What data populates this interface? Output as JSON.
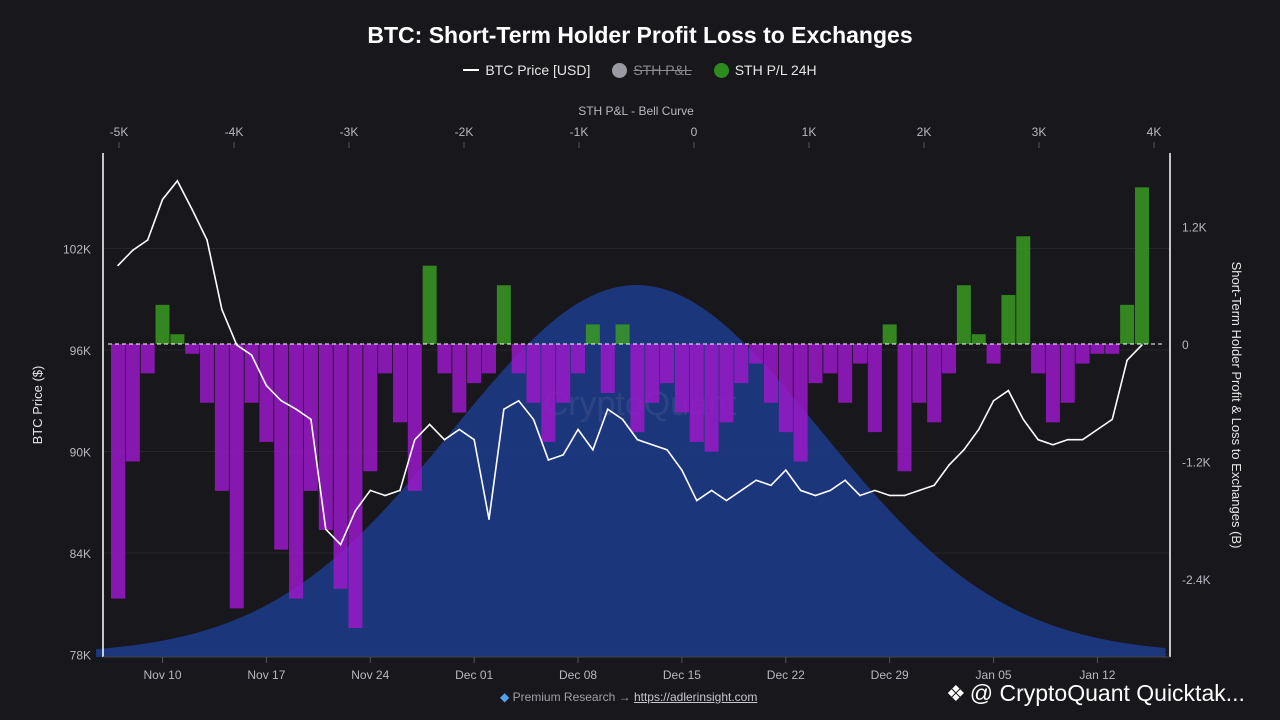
{
  "title": "BTC: Short-Term Holder Profit Loss to Exchanges",
  "legend": [
    {
      "label": "BTC Price [USD]",
      "color": "#ffffff",
      "marker": "line",
      "hidden": false
    },
    {
      "label": "STH P&L",
      "color": "#9a9aa2",
      "marker": "dot",
      "hidden": true
    },
    {
      "label": "STH P/L 24H",
      "color": "#2e8b1f",
      "marker": "dot",
      "hidden": false
    }
  ],
  "footer": {
    "icon": "diamond-icon",
    "text": "Premium Research →",
    "link": "https://adlerinsight.com"
  },
  "brand": {
    "icon": "cryptoquant-logo-icon",
    "text": "@ CryptoQuant Quicktak..."
  },
  "watermark": "CryptoQuant",
  "chart_data": {
    "type": "line+bar+area",
    "title": "BTC: Short-Term Holder Profit Loss to Exchanges",
    "top_axis": {
      "label": "STH P&L - Bell Curve",
      "ticks": [
        "-5K",
        "-4K",
        "-3K",
        "-2K",
        "-1K",
        "0",
        "1K",
        "2K",
        "3K",
        "4K"
      ],
      "range": [
        -5000,
        4000
      ]
    },
    "left_axis": {
      "label": "BTC Price ($)",
      "ticks": [
        "78K",
        "84K",
        "90K",
        "96K",
        "102K"
      ],
      "range": [
        78000,
        108000
      ]
    },
    "right_axis": {
      "label": "Short-Term Holder Profit & Loss to Exchanges (B)",
      "ticks": [
        "1.2K",
        "0",
        "-1.2K",
        "-2.4K"
      ],
      "range": [
        -3200,
        1800
      ]
    },
    "x_axis": {
      "ticks": [
        "Nov 10",
        "Nov 17",
        "Nov 24",
        "Dec 01",
        "Dec 08",
        "Dec 15",
        "Dec 22",
        "Dec 29",
        "Jan 05",
        "Jan 12"
      ],
      "start": "Nov 07",
      "end": "Jan 15"
    },
    "grid": true,
    "legend_position": "top",
    "colors": {
      "price": "#ffffff",
      "profit": "#3a9a22",
      "loss": "#9b19c9",
      "bell": "#1d3a86",
      "zero_line": "#ffffff"
    },
    "dates": [
      "Nov 07",
      "Nov 08",
      "Nov 09",
      "Nov 10",
      "Nov 11",
      "Nov 12",
      "Nov 13",
      "Nov 14",
      "Nov 15",
      "Nov 16",
      "Nov 17",
      "Nov 18",
      "Nov 19",
      "Nov 20",
      "Nov 21",
      "Nov 22",
      "Nov 23",
      "Nov 24",
      "Nov 25",
      "Nov 26",
      "Nov 27",
      "Nov 28",
      "Nov 29",
      "Nov 30",
      "Dec 01",
      "Dec 02",
      "Dec 03",
      "Dec 04",
      "Dec 05",
      "Dec 06",
      "Dec 07",
      "Dec 08",
      "Dec 09",
      "Dec 10",
      "Dec 11",
      "Dec 12",
      "Dec 13",
      "Dec 14",
      "Dec 15",
      "Dec 16",
      "Dec 17",
      "Dec 18",
      "Dec 19",
      "Dec 20",
      "Dec 21",
      "Dec 22",
      "Dec 23",
      "Dec 24",
      "Dec 25",
      "Dec 26",
      "Dec 27",
      "Dec 28",
      "Dec 29",
      "Dec 30",
      "Dec 31",
      "Jan 01",
      "Jan 02",
      "Jan 03",
      "Jan 04",
      "Jan 05",
      "Jan 06",
      "Jan 07",
      "Jan 08",
      "Jan 09",
      "Jan 10",
      "Jan 11",
      "Jan 12",
      "Jan 13",
      "Jan 14",
      "Jan 15"
    ],
    "series": [
      {
        "name": "BTC Price [USD]",
        "type": "line",
        "axis": "left",
        "values": [
          101000,
          101900,
          102500,
          104900,
          106000,
          104300,
          102500,
          98400,
          96300,
          95700,
          93900,
          93000,
          92500,
          91900,
          85400,
          84500,
          86500,
          87700,
          87400,
          87700,
          90700,
          91600,
          90700,
          91300,
          90700,
          86000,
          92500,
          93000,
          91900,
          89500,
          89800,
          91300,
          90100,
          92500,
          91900,
          90700,
          90400,
          90100,
          88900,
          87100,
          87700,
          87100,
          87700,
          88300,
          88000,
          88900,
          87700,
          87400,
          87700,
          88300,
          87400,
          87700,
          87400,
          87400,
          87700,
          88000,
          89200,
          90100,
          91300,
          93000,
          93600,
          91900,
          90700,
          90400,
          90700,
          90700,
          91300,
          91900,
          95400,
          96300
        ]
      },
      {
        "name": "STH P/L 24H",
        "type": "bar",
        "axis": "right",
        "values": [
          -2600,
          -1200,
          -300,
          400,
          100,
          -100,
          -600,
          -1500,
          -2700,
          -600,
          -1000,
          -2100,
          -2600,
          -1500,
          -1900,
          -2500,
          -2900,
          -1300,
          -300,
          -800,
          -1500,
          800,
          -300,
          -700,
          -400,
          -300,
          600,
          -300,
          -600,
          -1000,
          -600,
          -300,
          200,
          -500,
          200,
          -900,
          -600,
          -400,
          -700,
          -1000,
          -1100,
          -800,
          -400,
          -200,
          -600,
          -900,
          -1200,
          -400,
          -300,
          -600,
          -200,
          -900,
          200,
          -1300,
          -600,
          -800,
          -300,
          600,
          100,
          -200,
          500,
          1100,
          -300,
          -800,
          -600,
          -200,
          -100,
          -100,
          400,
          1600
        ]
      }
    ],
    "bell_curve": {
      "axis": "top",
      "mean": -500,
      "std": 1600
    }
  }
}
